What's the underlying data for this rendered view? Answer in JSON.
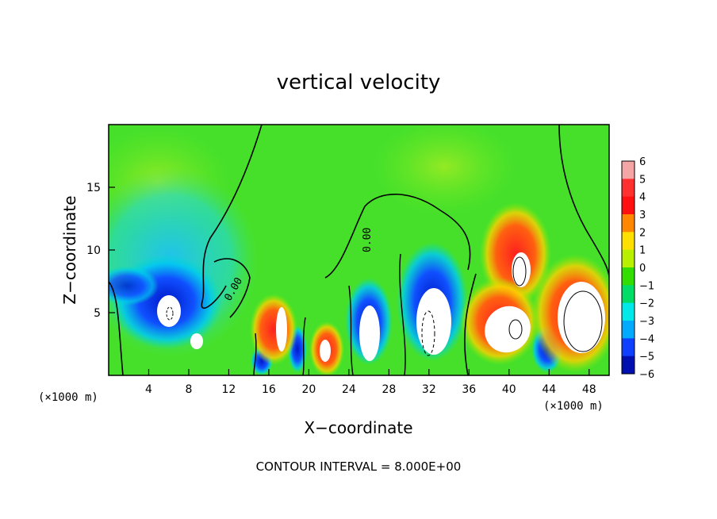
{
  "chart_data": {
    "type": "heatmap",
    "title": "vertical velocity",
    "xlabel": "X−coordinate",
    "ylabel": "Z−coordinate",
    "x_unit": "(×1000 m)",
    "x_unit_right": "(×1000 m)",
    "xlim": [
      0,
      50
    ],
    "ylim": [
      0,
      20
    ],
    "x_ticks": [
      4,
      8,
      12,
      16,
      20,
      24,
      28,
      32,
      36,
      40,
      44,
      48
    ],
    "y_ticks": [
      5,
      10,
      15
    ],
    "colorbar": {
      "levels": [
        6,
        5,
        4,
        3,
        2,
        1,
        0,
        -1,
        -2,
        -3,
        -4,
        -5,
        -6
      ],
      "labels": [
        "6",
        "5",
        "4",
        "3",
        "2",
        "1",
        "0",
        "−1",
        "−2",
        "−3",
        "−4",
        "−5",
        "−6"
      ],
      "colors": [
        "#f4a6a6",
        "#ff3030",
        "#ff1010",
        "#ff8800",
        "#ffe000",
        "#b8f000",
        "#33dd00",
        "#00dd66",
        "#00e8e8",
        "#00aaff",
        "#1040ff",
        "#0010b0",
        "#7a00b0"
      ]
    },
    "contour_label": "0.00",
    "contour_label_2": "0.00",
    "features": [
      {
        "kind": "updraft",
        "x": 17.5,
        "z": 3.2,
        "peak": 6
      },
      {
        "kind": "updraft",
        "x": 21.8,
        "z": 2.0,
        "peak": 6
      },
      {
        "kind": "updraft",
        "x": 40.5,
        "z": 10.0,
        "peak": 6
      },
      {
        "kind": "updraft",
        "x": 39.0,
        "z": 5.0,
        "peak": 6
      },
      {
        "kind": "updraft",
        "x": 46.5,
        "z": 5.0,
        "peak": 6
      },
      {
        "kind": "downdraft",
        "x": 6.5,
        "z": 5.0,
        "peak": -6
      },
      {
        "kind": "downdraft",
        "x": 26.5,
        "z": 4.0,
        "peak": -6
      },
      {
        "kind": "downdraft",
        "x": 32.5,
        "z": 4.0,
        "peak": -6
      }
    ]
  },
  "footer": "CONTOUR INTERVAL = 8.000E+00"
}
